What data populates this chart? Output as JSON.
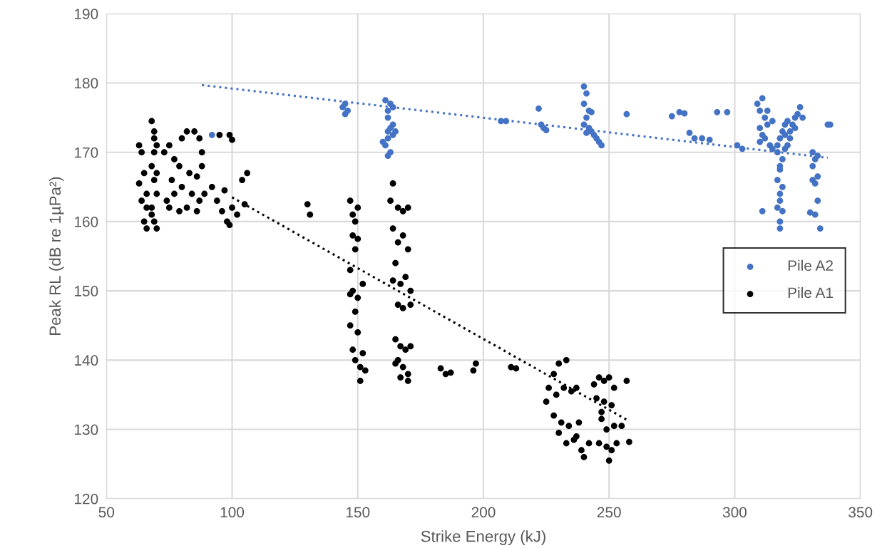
{
  "chart_data": {
    "type": "scatter",
    "xlabel": "Strike Energy (kJ)",
    "ylabel": "Peak RL (dB re 1µPa²)",
    "xlim": [
      50,
      350
    ],
    "xticks": [
      50,
      100,
      150,
      200,
      250,
      300,
      350
    ],
    "ylim": [
      120,
      190
    ],
    "yticks": [
      120,
      130,
      140,
      150,
      160,
      170,
      180,
      190
    ],
    "grid": true,
    "legend": "right",
    "marker": "circle",
    "series": [
      {
        "name": "Pile A2",
        "color": "#4472c4",
        "x": [
          144,
          145,
          145,
          146,
          161,
          162,
          163,
          164,
          162,
          163,
          164,
          162,
          161,
          163,
          162,
          164,
          165,
          160,
          162,
          92,
          207,
          209,
          222,
          223,
          224,
          225,
          240,
          241,
          240,
          242,
          241,
          243,
          240,
          242,
          244,
          245,
          246,
          247,
          243,
          241,
          257,
          275,
          278,
          280,
          282,
          284,
          287,
          290,
          293,
          297,
          301,
          303,
          309,
          310,
          311,
          312,
          313,
          310,
          311,
          312,
          314,
          315,
          310,
          313,
          315,
          317,
          318,
          317,
          318,
          317,
          318,
          318,
          319,
          318,
          319,
          318,
          319,
          317,
          318,
          319,
          320,
          321,
          320,
          321,
          322,
          323,
          324,
          325,
          326,
          327,
          324,
          322,
          320,
          311,
          331,
          332,
          331,
          333,
          331,
          332,
          333,
          333,
          330,
          332,
          334,
          337,
          338
        ],
        "values": [
          176.5,
          175.5,
          177,
          176,
          177.5,
          176,
          177,
          176.5,
          175,
          173.5,
          174,
          172,
          171,
          170,
          169.5,
          172.5,
          173,
          171.5,
          173,
          172.5,
          174.5,
          174.5,
          176.3,
          174,
          173.5,
          173.2,
          179.5,
          178.5,
          177,
          176,
          175,
          175.8,
          174,
          173.5,
          172.5,
          172,
          171.5,
          171,
          173,
          172.8,
          175.5,
          175.2,
          175.8,
          175.6,
          172.8,
          172,
          172,
          171.8,
          175.8,
          175.8,
          171,
          170.5,
          177,
          176,
          177.8,
          175,
          174,
          173.5,
          172.5,
          172,
          171,
          170.5,
          171.5,
          176,
          174.5,
          170,
          168,
          166,
          164,
          162,
          160,
          159,
          161.5,
          163,
          165,
          167.5,
          169,
          171,
          172,
          173,
          174,
          174.5,
          172.5,
          171,
          173,
          174,
          175,
          175.5,
          176.5,
          175,
          173.5,
          172,
          170.5,
          161.5,
          170,
          169,
          168,
          169.5,
          166,
          165.5,
          166.5,
          163,
          161.3,
          161,
          159,
          174,
          174
        ]
      },
      {
        "name": "Pile A1",
        "color": "#000000",
        "x": [
          68,
          69,
          69,
          68,
          69,
          70,
          68,
          69,
          70,
          68,
          70,
          69,
          70,
          63,
          64,
          63,
          65,
          66,
          66,
          65,
          64,
          66,
          73,
          75,
          77,
          80,
          82,
          85,
          87,
          76,
          79,
          83,
          86,
          88,
          74,
          77,
          80,
          84,
          87,
          75,
          79,
          82,
          86,
          89,
          88,
          92,
          94,
          96,
          98,
          99,
          97,
          100,
          102,
          95,
          99,
          100,
          104,
          106,
          105,
          130,
          131,
          147,
          148,
          149,
          150,
          148,
          149,
          150,
          147,
          148,
          150,
          149,
          147,
          150,
          148,
          149,
          151,
          152,
          151,
          153,
          147,
          152,
          164,
          163,
          166,
          168,
          170,
          164,
          166,
          168,
          170,
          165,
          167,
          169,
          171,
          166,
          168,
          171,
          164,
          165,
          167,
          169,
          171,
          166,
          168,
          170,
          165,
          167,
          170,
          183,
          185,
          187,
          196,
          197,
          211,
          213,
          226,
          228,
          230,
          233,
          225,
          229,
          232,
          235,
          237,
          228,
          231,
          234,
          237,
          230,
          233,
          236,
          239,
          240,
          242,
          238,
          244,
          246,
          248,
          250,
          252,
          245,
          248,
          251,
          247,
          249,
          252,
          246,
          249,
          251,
          253,
          250,
          247,
          257,
          258,
          255
        ],
        "values": [
          174.5,
          172,
          170,
          168,
          166,
          164,
          162,
          160,
          159,
          161,
          171,
          173,
          167,
          171,
          163,
          165.5,
          160,
          159,
          164,
          167,
          170,
          162,
          170,
          171,
          169,
          172,
          173,
          173,
          172,
          166,
          168,
          167,
          166.5,
          168,
          163,
          164,
          165,
          164,
          163,
          162,
          161.5,
          162,
          161.5,
          164,
          170,
          165,
          163,
          161.5,
          160,
          159.5,
          164.5,
          162,
          161,
          172.5,
          172.5,
          171.8,
          166,
          167,
          162.5,
          162.5,
          161,
          163,
          161,
          160,
          162,
          158,
          156,
          157.5,
          153,
          150,
          149,
          147,
          145,
          144,
          141.5,
          140,
          139,
          141,
          137,
          138.5,
          149.5,
          151,
          165.5,
          163,
          162,
          161.5,
          162,
          159,
          157,
          158,
          156,
          154,
          151,
          152,
          150,
          148,
          147.5,
          148,
          151.5,
          143,
          142,
          141.5,
          142,
          140,
          139,
          138,
          139.5,
          137.5,
          137,
          138.8,
          138,
          138.2,
          138.5,
          139.5,
          139,
          138.8,
          136,
          138,
          139.5,
          140,
          134,
          135,
          136,
          135.5,
          136,
          132,
          131,
          130.5,
          129,
          129.5,
          128,
          128.5,
          127,
          126,
          128,
          131,
          136.5,
          137.5,
          137,
          137.5,
          136,
          134.5,
          134,
          133.5,
          131.5,
          130,
          130.5,
          128,
          127.5,
          127,
          128,
          125.5,
          132.5,
          137,
          128.2,
          130.5
        ]
      },
      {
        "color": "#4472c4",
        "type": "line",
        "marker": "none",
        "line_style": "dotted",
        "x": [
          88,
          337
        ],
        "values": [
          179.7,
          169.2
        ]
      },
      {
        "color": "#000000",
        "type": "line",
        "marker": "none",
        "line_style": "dotted",
        "x": [
          100,
          258
        ],
        "values": [
          163.5,
          131.2
        ]
      }
    ]
  }
}
